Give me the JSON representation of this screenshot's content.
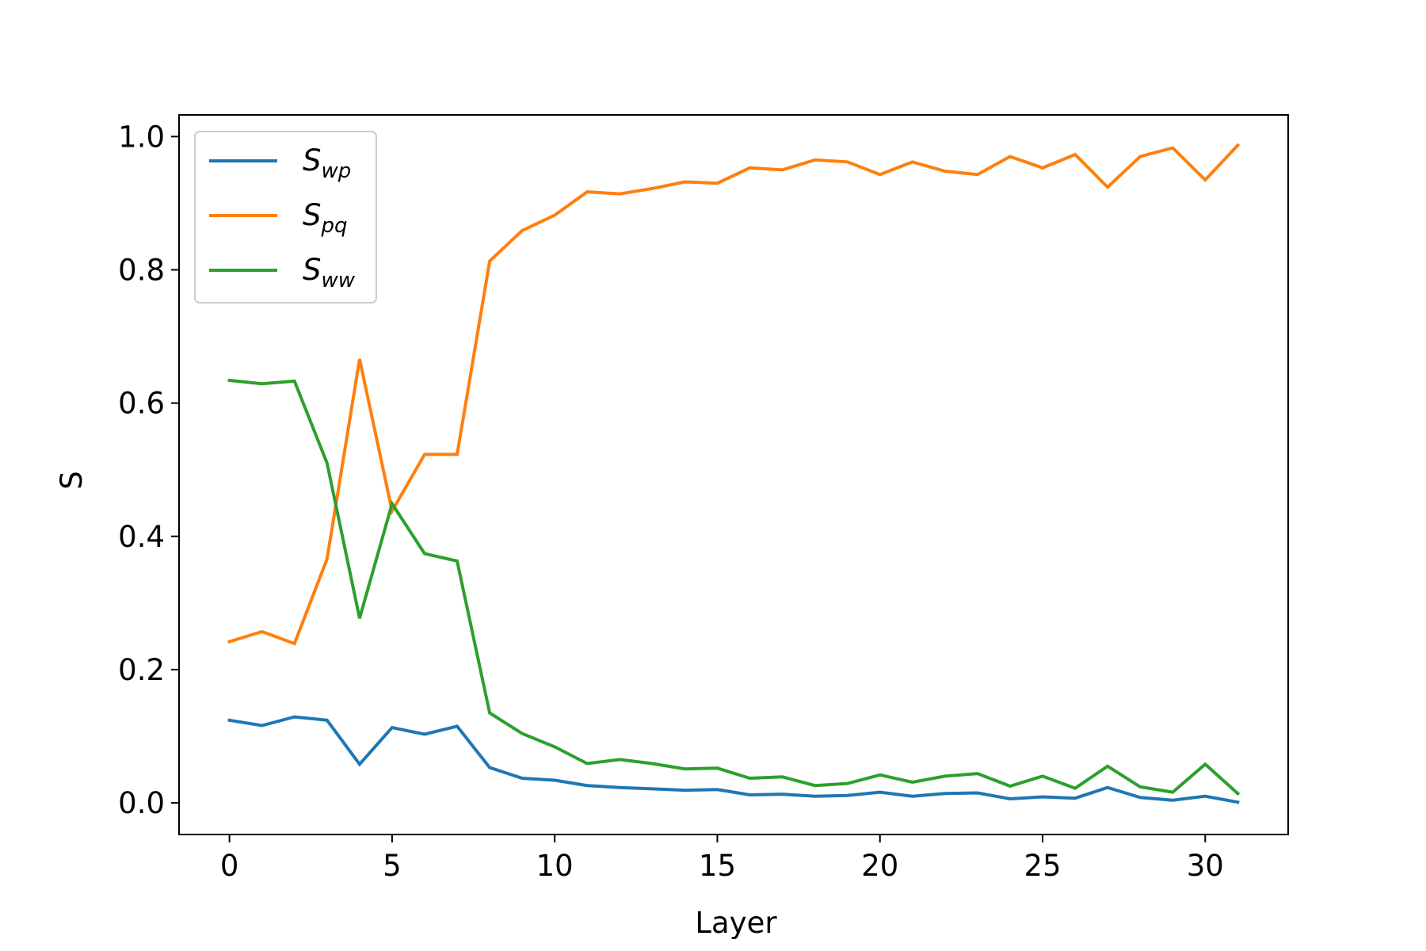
{
  "chart_data": {
    "type": "line",
    "title": "",
    "xlabel": "Layer",
    "ylabel": "S",
    "xlim": [
      -1.55,
      32.55
    ],
    "ylim": [
      -0.0475,
      1.0325
    ],
    "xticks": [
      0,
      5,
      10,
      15,
      20,
      25,
      30
    ],
    "yticks": [
      0.0,
      0.2,
      0.4,
      0.6,
      0.8,
      1.0
    ],
    "xtick_labels": [
      "0",
      "5",
      "10",
      "15",
      "20",
      "25",
      "30"
    ],
    "ytick_labels": [
      "0.0",
      "0.2",
      "0.4",
      "0.6",
      "0.8",
      "1.0"
    ],
    "grid": false,
    "legend_position": "top-left",
    "x": [
      0,
      1,
      2,
      3,
      4,
      5,
      6,
      7,
      8,
      9,
      10,
      11,
      12,
      13,
      14,
      15,
      16,
      17,
      18,
      19,
      20,
      21,
      22,
      23,
      24,
      25,
      26,
      27,
      28,
      29,
      30,
      31
    ],
    "series": [
      {
        "legend_main": "S",
        "legend_sub": "wp",
        "color": "#1f77b4",
        "values": [
          0.124,
          0.116,
          0.129,
          0.124,
          0.058,
          0.113,
          0.103,
          0.115,
          0.053,
          0.037,
          0.034,
          0.026,
          0.023,
          0.021,
          0.019,
          0.02,
          0.012,
          0.013,
          0.01,
          0.011,
          0.016,
          0.01,
          0.014,
          0.015,
          0.006,
          0.009,
          0.007,
          0.023,
          0.008,
          0.004,
          0.01,
          0.001
        ]
      },
      {
        "legend_main": "S",
        "legend_sub": "pq",
        "color": "#ff7f0e",
        "values": [
          0.242,
          0.257,
          0.239,
          0.366,
          0.666,
          0.438,
          0.523,
          0.523,
          0.813,
          0.859,
          0.882,
          0.917,
          0.914,
          0.922,
          0.932,
          0.93,
          0.953,
          0.95,
          0.965,
          0.962,
          0.943,
          0.962,
          0.948,
          0.943,
          0.97,
          0.953,
          0.973,
          0.924,
          0.97,
          0.983,
          0.935,
          0.987
        ]
      },
      {
        "legend_main": "S",
        "legend_sub": "ww",
        "color": "#2ca02c",
        "values": [
          0.634,
          0.629,
          0.633,
          0.51,
          0.277,
          0.449,
          0.374,
          0.363,
          0.135,
          0.104,
          0.084,
          0.059,
          0.065,
          0.059,
          0.051,
          0.052,
          0.037,
          0.039,
          0.026,
          0.029,
          0.042,
          0.031,
          0.04,
          0.044,
          0.025,
          0.04,
          0.022,
          0.055,
          0.024,
          0.016,
          0.058,
          0.014
        ]
      }
    ]
  }
}
